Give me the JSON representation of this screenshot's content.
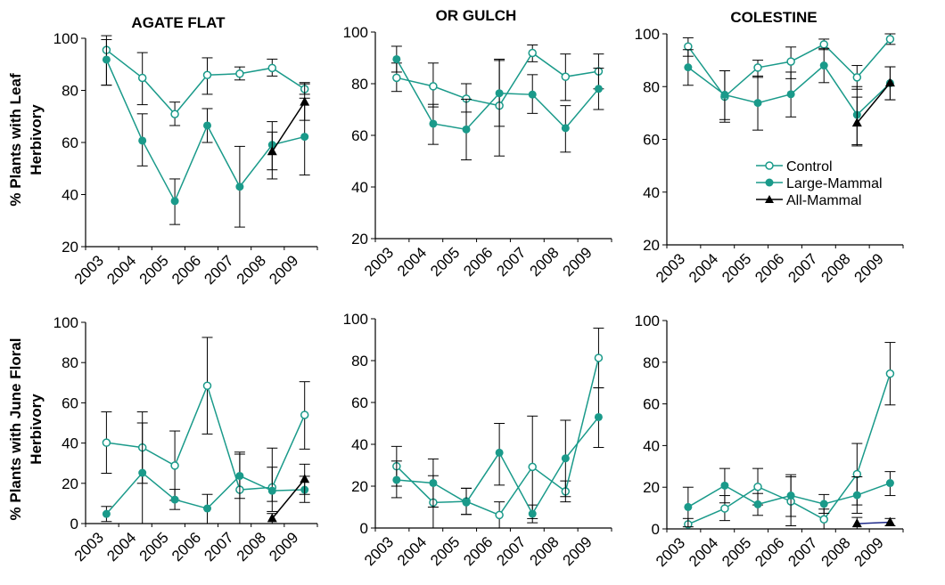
{
  "row_labels": [
    [
      "% Plants with Leaf",
      "Herbivory"
    ],
    [
      "% Plants with June Floral",
      "Herbivory"
    ]
  ],
  "legend": [
    {
      "label": "Control",
      "marker": "open-circle",
      "color": "#1a9a8a"
    },
    {
      "label": "Large-Mammal",
      "marker": "filled-circle",
      "color": "#1a9a8a"
    },
    {
      "label": "All-Mammal",
      "marker": "filled-triangle",
      "color": "#000000"
    }
  ],
  "colors": {
    "control": "#1a9a8a",
    "large_mammal": "#1a9a8a",
    "all_mammal": "#000000",
    "all_mammal_colestine_floral": "#1f2a8a"
  },
  "chart_data": [
    {
      "type": "line",
      "title": "AGATE FLAT",
      "x": [
        "2003",
        "2004",
        "2005",
        "2006",
        "2007",
        "2008",
        "2009"
      ],
      "ylim": [
        20,
        100
      ],
      "yticks": [
        20,
        40,
        60,
        80,
        100
      ],
      "series": [
        {
          "name": "Control",
          "values": [
            95.5,
            84.8,
            70.9,
            85.9,
            86.4,
            88.6,
            80.5
          ],
          "err_low": [
            82,
            74.5,
            66.5,
            78.5,
            84,
            85.5,
            78.5
          ],
          "err_high": [
            101,
            94.5,
            75.5,
            92.5,
            89,
            92,
            83
          ]
        },
        {
          "name": "Large-Mammal",
          "values": [
            91.8,
            60.7,
            37.5,
            66.5,
            43.0,
            59.1,
            62.2
          ],
          "err_low": [
            82,
            51,
            28.5,
            60,
            27.5,
            46,
            47.5
          ],
          "err_high": [
            99.5,
            71,
            46,
            73,
            58.5,
            68,
            77
          ]
        },
        {
          "name": "All-Mammal",
          "values": [
            null,
            null,
            null,
            null,
            null,
            56.5,
            75.5
          ],
          "err_low": [
            null,
            null,
            null,
            null,
            null,
            49.5,
            68.5
          ],
          "err_high": [
            null,
            null,
            null,
            null,
            null,
            64,
            82.5
          ]
        }
      ]
    },
    {
      "type": "line",
      "title": "OR GULCH",
      "x": [
        "2003",
        "2004",
        "2005",
        "2006",
        "2007",
        "2008",
        "2009"
      ],
      "ylim": [
        20,
        100
      ],
      "yticks": [
        20,
        40,
        60,
        80,
        100
      ],
      "series": [
        {
          "name": "Control",
          "values": [
            82.3,
            79.0,
            74.2,
            71.5,
            91.9,
            82.7,
            84.8
          ],
          "err_low": [
            77,
            71,
            69,
            52,
            88.5,
            73.5,
            78
          ],
          "err_high": [
            88,
            88,
            80,
            89.5,
            95,
            91.5,
            91.5
          ]
        },
        {
          "name": "Large-Mammal",
          "values": [
            89.5,
            64.5,
            62.3,
            76.3,
            75.8,
            62.8,
            78.0
          ],
          "err_low": [
            84.5,
            56.5,
            50.5,
            63.5,
            68.5,
            53.5,
            70
          ],
          "err_high": [
            94.5,
            72,
            74,
            89,
            83.5,
            71.5,
            86
          ]
        }
      ]
    },
    {
      "type": "line",
      "title": "COLESTINE",
      "x": [
        "2003",
        "2004",
        "2005",
        "2006",
        "2007",
        "2008",
        "2009"
      ],
      "ylim": [
        20,
        100
      ],
      "yticks": [
        20,
        40,
        60,
        80,
        100
      ],
      "series": [
        {
          "name": "Control",
          "values": [
            95.2,
            76.2,
            87.2,
            89.5,
            96.0,
            83.5,
            98.0
          ],
          "err_low": [
            91.5,
            66.5,
            83.5,
            83,
            94,
            79,
            96
          ],
          "err_high": [
            98.5,
            86,
            90,
            95,
            98,
            88,
            100
          ]
        },
        {
          "name": "Large-Mammal",
          "values": [
            87.3,
            76.9,
            73.8,
            77.1,
            88.0,
            69.3,
            81.3
          ],
          "err_low": [
            80.5,
            67.5,
            63.5,
            68.5,
            81.5,
            58,
            75
          ],
          "err_high": [
            94,
            86,
            84,
            85.5,
            94.5,
            80,
            87.5
          ]
        },
        {
          "name": "All-Mammal",
          "values": [
            null,
            null,
            null,
            null,
            null,
            66.2,
            81.4
          ],
          "err_low": [
            null,
            null,
            null,
            null,
            null,
            57.5,
            75
          ],
          "err_high": [
            null,
            null,
            null,
            null,
            null,
            76,
            87.5
          ]
        }
      ]
    },
    {
      "type": "line",
      "title": "",
      "x": [
        "2003",
        "2004",
        "2005",
        "2006",
        "2007",
        "2008",
        "2009"
      ],
      "ylim": [
        0,
        100
      ],
      "yticks": [
        0,
        20,
        40,
        60,
        80,
        100
      ],
      "series": [
        {
          "name": "Control",
          "values": [
            40.2,
            37.8,
            28.8,
            68.5,
            16.8,
            18.0,
            54.0
          ],
          "err_low": [
            25,
            20,
            11.5,
            44.5,
            12.5,
            11,
            37
          ],
          "err_high": [
            55.5,
            55.5,
            46,
            92.5,
            35.5,
            37.5,
            70.5
          ]
        },
        {
          "name": "Large-Mammal",
          "values": [
            4.8,
            25.2,
            11.9,
            7.5,
            23.7,
            16.3,
            16.8
          ],
          "err_low": [
            1,
            0,
            7,
            0,
            0,
            6,
            10.5
          ],
          "err_high": [
            8.5,
            50,
            17,
            14.5,
            34.5,
            28,
            23.5
          ]
        },
        {
          "name": "All-Mammal",
          "values": [
            null,
            null,
            null,
            null,
            null,
            2.5,
            22.0
          ],
          "err_low": [
            null,
            null,
            null,
            null,
            null,
            0,
            14.5
          ],
          "err_high": [
            null,
            null,
            null,
            null,
            null,
            5,
            29.5
          ]
        }
      ]
    },
    {
      "type": "line",
      "title": "",
      "x": [
        "2003",
        "2004",
        "2005",
        "2006",
        "2007",
        "2008",
        "2009"
      ],
      "ylim": [
        0,
        100
      ],
      "yticks": [
        0,
        20,
        40,
        60,
        80,
        100
      ],
      "series": [
        {
          "name": "Control",
          "values": [
            29.5,
            12.2,
            12.7,
            6.2,
            29.2,
            17.5,
            81.3
          ],
          "err_low": [
            20,
            0,
            6.5,
            0,
            4.5,
            12.5,
            67
          ],
          "err_high": [
            39,
            25,
            19,
            12.5,
            53.5,
            22.5,
            95.5
          ]
        },
        {
          "name": "Large-Mammal",
          "values": [
            23.0,
            21.5,
            12.2,
            36.0,
            6.8,
            33.3,
            53.0
          ],
          "err_low": [
            14.5,
            10,
            6.5,
            20.5,
            2.5,
            15,
            38.5
          ],
          "err_high": [
            32,
            33,
            19,
            50,
            11,
            51.5,
            67
          ]
        }
      ]
    },
    {
      "type": "line",
      "title": "",
      "x": [
        "2003",
        "2004",
        "2005",
        "2006",
        "2007",
        "2008",
        "2009"
      ],
      "ylim": [
        0,
        100
      ],
      "yticks": [
        0,
        20,
        40,
        60,
        80,
        100
      ],
      "series": [
        {
          "name": "Control",
          "values": [
            2.2,
            9.8,
            20.2,
            13.2,
            4.6,
            26.3,
            74.5
          ],
          "err_low": [
            0,
            4,
            11.5,
            1.5,
            0,
            11.5,
            59.5
          ],
          "err_high": [
            5,
            16,
            29,
            25,
            9.5,
            41,
            89.5
          ]
        },
        {
          "name": "Large-Mammal",
          "values": [
            10.5,
            20.8,
            11.8,
            16.0,
            12.0,
            16.2,
            22.0
          ],
          "err_low": [
            1,
            12.5,
            6.5,
            6,
            7.5,
            7.5,
            16
          ],
          "err_high": [
            20,
            29,
            17,
            26,
            16.5,
            25,
            27.5
          ]
        },
        {
          "name": "All-Mammal",
          "values": [
            null,
            null,
            null,
            null,
            null,
            2.5,
            3.2
          ],
          "err_low": [
            null,
            null,
            null,
            null,
            null,
            0,
            1.5
          ],
          "err_high": [
            null,
            null,
            null,
            null,
            null,
            5.5,
            5
          ]
        }
      ]
    }
  ]
}
